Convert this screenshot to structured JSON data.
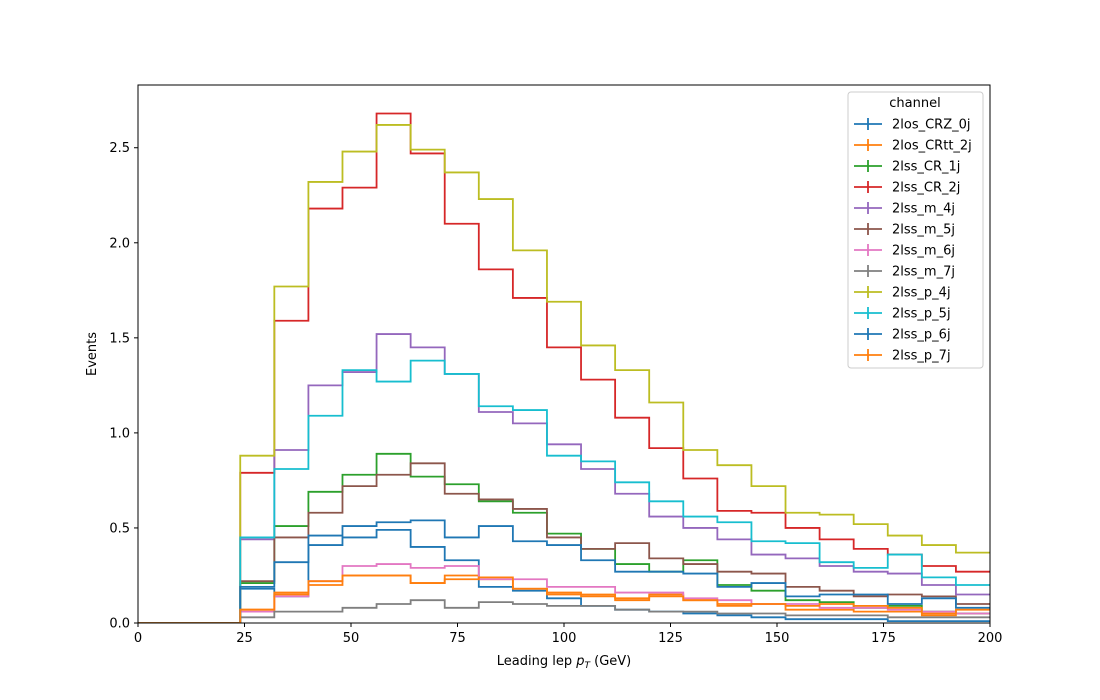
{
  "chart_data": {
    "type": "line",
    "subtype": "step-histogram",
    "xlabel_main": "Leading lep ",
    "xlabel_sym": "p",
    "xlabel_sub": "T",
    "xlabel_unit": " (GeV)",
    "ylabel": "Events",
    "xlim": [
      0,
      200
    ],
    "ylim": [
      0,
      2.83
    ],
    "xticks": [
      0,
      25,
      50,
      75,
      100,
      125,
      150,
      175,
      200
    ],
    "yticks": [
      0.0,
      0.5,
      1.0,
      1.5,
      2.0,
      2.5
    ],
    "ytick_labels": [
      "0.0",
      "0.5",
      "1.0",
      "1.5",
      "2.0",
      "2.5"
    ],
    "grid": false,
    "legend_title": "channel",
    "legend_position": "top-right",
    "bin_edges": [
      0,
      8,
      16,
      24,
      32,
      40,
      48,
      56,
      64,
      72,
      80,
      88,
      96,
      104,
      112,
      120,
      128,
      136,
      144,
      152,
      160,
      168,
      176,
      184,
      192,
      200
    ],
    "series": [
      {
        "name": "2los_CRZ_0j",
        "color": "#1f77b4",
        "values": [
          0,
          0,
          0,
          0.18,
          0.14,
          0.41,
          0.45,
          0.49,
          0.4,
          0.33,
          0.19,
          0.17,
          0.13,
          0.09,
          0.07,
          0.06,
          0.05,
          0.04,
          0.03,
          0.02,
          0.02,
          0.02,
          0.01,
          0.01,
          0.01
        ]
      },
      {
        "name": "2los_CRtt_2j",
        "color": "#ff7f0e",
        "values": [
          0,
          0,
          0,
          0.07,
          0.16,
          0.2,
          0.25,
          0.25,
          0.21,
          0.25,
          0.23,
          0.18,
          0.16,
          0.15,
          0.13,
          0.15,
          0.12,
          0.1,
          0.1,
          0.07,
          0.07,
          0.06,
          0.06,
          0.04,
          0.05
        ]
      },
      {
        "name": "2lss_CR_1j",
        "color": "#2ca02c",
        "values": [
          0,
          0,
          0,
          0.21,
          0.51,
          0.69,
          0.78,
          0.89,
          0.77,
          0.73,
          0.64,
          0.58,
          0.47,
          0.39,
          0.31,
          0.27,
          0.33,
          0.2,
          0.17,
          0.12,
          0.11,
          0.08,
          0.09,
          0.06,
          0.05
        ]
      },
      {
        "name": "2lss_CR_2j",
        "color": "#d62728",
        "values": [
          0,
          0,
          0,
          0.79,
          1.59,
          2.18,
          2.29,
          2.68,
          2.47,
          2.1,
          1.86,
          1.71,
          1.45,
          1.28,
          1.08,
          0.92,
          0.76,
          0.59,
          0.58,
          0.5,
          0.44,
          0.39,
          0.36,
          0.3,
          0.27
        ]
      },
      {
        "name": "2lss_m_4j",
        "color": "#9467bd",
        "values": [
          0,
          0,
          0,
          0.44,
          0.91,
          1.25,
          1.32,
          1.52,
          1.45,
          1.31,
          1.11,
          1.05,
          0.94,
          0.81,
          0.68,
          0.56,
          0.5,
          0.44,
          0.36,
          0.34,
          0.3,
          0.27,
          0.26,
          0.2,
          0.15
        ]
      },
      {
        "name": "2lss_m_5j",
        "color": "#8c564b",
        "values": [
          0,
          0,
          0,
          0.22,
          0.45,
          0.58,
          0.72,
          0.78,
          0.84,
          0.68,
          0.65,
          0.6,
          0.45,
          0.39,
          0.42,
          0.34,
          0.31,
          0.27,
          0.26,
          0.19,
          0.17,
          0.14,
          0.15,
          0.14,
          0.1
        ]
      },
      {
        "name": "2lss_m_6j",
        "color": "#e377c2",
        "values": [
          0,
          0,
          0,
          0.06,
          0.14,
          0.22,
          0.3,
          0.31,
          0.29,
          0.3,
          0.23,
          0.23,
          0.19,
          0.19,
          0.16,
          0.16,
          0.13,
          0.12,
          0.1,
          0.1,
          0.08,
          0.08,
          0.07,
          0.06,
          0.05
        ]
      },
      {
        "name": "2lss_m_7j",
        "color": "#7f7f7f",
        "values": [
          0,
          0,
          0,
          0.03,
          0.06,
          0.06,
          0.08,
          0.1,
          0.12,
          0.08,
          0.11,
          0.1,
          0.09,
          0.09,
          0.07,
          0.06,
          0.06,
          0.05,
          0.05,
          0.04,
          0.04,
          0.04,
          0.03,
          0.03,
          0.03
        ]
      },
      {
        "name": "2lss_p_4j",
        "color": "#bcbd22",
        "values": [
          0,
          0,
          0,
          0.88,
          1.77,
          2.32,
          2.48,
          2.62,
          2.49,
          2.37,
          2.23,
          1.96,
          1.69,
          1.46,
          1.33,
          1.16,
          0.91,
          0.83,
          0.72,
          0.58,
          0.57,
          0.52,
          0.46,
          0.41,
          0.37
        ]
      },
      {
        "name": "2lss_p_5j",
        "color": "#17becf",
        "values": [
          0,
          0,
          0,
          0.45,
          0.81,
          1.09,
          1.33,
          1.27,
          1.38,
          1.31,
          1.14,
          1.12,
          0.88,
          0.85,
          0.74,
          0.64,
          0.56,
          0.53,
          0.43,
          0.42,
          0.32,
          0.29,
          0.36,
          0.24,
          0.2
        ]
      },
      {
        "name": "2lss_p_6j",
        "color": "#1f77b4",
        "values": [
          0,
          0,
          0,
          0.19,
          0.32,
          0.46,
          0.51,
          0.53,
          0.54,
          0.45,
          0.51,
          0.43,
          0.41,
          0.33,
          0.27,
          0.27,
          0.26,
          0.19,
          0.21,
          0.14,
          0.15,
          0.15,
          0.1,
          0.13,
          0.08
        ]
      },
      {
        "name": "2lss_p_7j",
        "color": "#ff7f0e",
        "values": [
          0,
          0,
          0,
          0.07,
          0.15,
          0.22,
          0.25,
          0.25,
          0.21,
          0.23,
          0.24,
          0.18,
          0.15,
          0.14,
          0.12,
          0.14,
          0.12,
          0.09,
          0.1,
          0.09,
          0.1,
          0.09,
          0.08,
          0.05,
          0.07
        ]
      }
    ]
  }
}
